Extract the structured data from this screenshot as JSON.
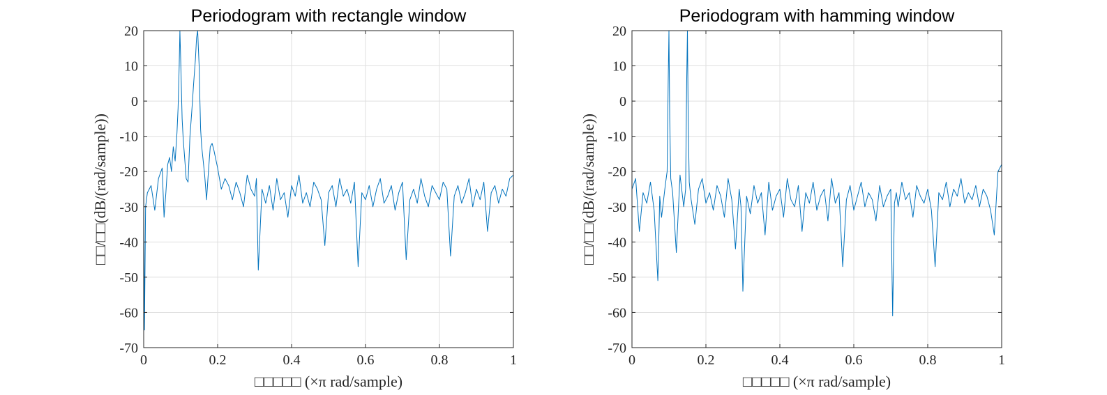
{
  "chart_data": [
    {
      "type": "line",
      "title": "Periodogram with rectangle window",
      "xlabel": "□□□□□  (×π rad/sample)",
      "ylabel": "□□/□□(dB/(rad/sample))",
      "xlim": [
        0,
        1
      ],
      "ylim": [
        -70,
        20
      ],
      "xticks": [
        "0",
        "0.2",
        "0.4",
        "0.6",
        "0.8",
        "1"
      ],
      "yticks": [
        "20",
        "10",
        "0",
        "-10",
        "-20",
        "-30",
        "-40",
        "-50",
        "-60",
        "-70"
      ],
      "grid": true,
      "color": "#0072BD",
      "series": [
        {
          "x": [
            0,
            0.002,
            0.005,
            0.01,
            0.02,
            0.03,
            0.04,
            0.05,
            0.055,
            0.06,
            0.065,
            0.07,
            0.075,
            0.08,
            0.085,
            0.09,
            0.093,
            0.096,
            0.098,
            0.1,
            0.102,
            0.104,
            0.107,
            0.11,
            0.115,
            0.12,
            0.125,
            0.13,
            0.135,
            0.14,
            0.143,
            0.146,
            0.148,
            0.15,
            0.152,
            0.154,
            0.157,
            0.16,
            0.165,
            0.17,
            0.175,
            0.18,
            0.185,
            0.19,
            0.2,
            0.21,
            0.22,
            0.23,
            0.24,
            0.25,
            0.26,
            0.27,
            0.28,
            0.29,
            0.3,
            0.305,
            0.31,
            0.32,
            0.33,
            0.34,
            0.35,
            0.36,
            0.37,
            0.38,
            0.39,
            0.4,
            0.41,
            0.42,
            0.43,
            0.44,
            0.45,
            0.46,
            0.47,
            0.48,
            0.49,
            0.5,
            0.51,
            0.52,
            0.53,
            0.54,
            0.55,
            0.56,
            0.57,
            0.58,
            0.59,
            0.6,
            0.61,
            0.62,
            0.63,
            0.64,
            0.65,
            0.66,
            0.67,
            0.68,
            0.69,
            0.7,
            0.71,
            0.72,
            0.73,
            0.74,
            0.75,
            0.76,
            0.77,
            0.78,
            0.79,
            0.8,
            0.81,
            0.82,
            0.83,
            0.84,
            0.85,
            0.86,
            0.87,
            0.88,
            0.89,
            0.9,
            0.91,
            0.92,
            0.93,
            0.94,
            0.95,
            0.96,
            0.97,
            0.98,
            0.99,
            1
          ],
          "y": [
            -22,
            -65,
            -30,
            -26,
            -24,
            -31,
            -22,
            -19,
            -33,
            -26,
            -18,
            -16,
            -20,
            -13,
            -17,
            -9,
            -2,
            10,
            20,
            12,
            3,
            -5,
            -11,
            -15,
            -22,
            -23,
            -10,
            -3,
            5,
            12,
            18,
            20,
            15,
            10,
            0,
            -8,
            -13,
            -16,
            -21,
            -28,
            -20,
            -13,
            -12,
            -14,
            -19,
            -25,
            -22,
            -24,
            -28,
            -23,
            -26,
            -30,
            -21,
            -25,
            -27,
            -22,
            -48,
            -25,
            -29,
            -24,
            -31,
            -22,
            -28,
            -26,
            -33,
            -24,
            -27,
            -21,
            -29,
            -26,
            -30,
            -23,
            -25,
            -28,
            -41,
            -26,
            -24,
            -30,
            -22,
            -27,
            -25,
            -29,
            -23,
            -47,
            -26,
            -28,
            -24,
            -30,
            -25,
            -22,
            -29,
            -27,
            -24,
            -31,
            -26,
            -23,
            -45,
            -28,
            -25,
            -29,
            -22,
            -27,
            -30,
            -24,
            -26,
            -28,
            -23,
            -25,
            -44,
            -27,
            -24,
            -29,
            -26,
            -22,
            -30,
            -25,
            -28,
            -23,
            -37,
            -26,
            -24,
            -29,
            -25,
            -27,
            -22,
            -21
          ]
        }
      ]
    },
    {
      "type": "line",
      "title": "Periodogram with hamming window",
      "xlabel": "□□□□□  (×π rad/sample)",
      "ylabel": "□□/□□(dB/(rad/sample))",
      "xlim": [
        0,
        1
      ],
      "ylim": [
        -70,
        20
      ],
      "xticks": [
        "0",
        "0.2",
        "0.4",
        "0.6",
        "0.8",
        "1"
      ],
      "yticks": [
        "20",
        "10",
        "0",
        "-10",
        "-20",
        "-30",
        "-40",
        "-50",
        "-60",
        "-70"
      ],
      "grid": true,
      "color": "#0072BD",
      "series": [
        {
          "x": [
            0,
            0.01,
            0.02,
            0.03,
            0.04,
            0.05,
            0.06,
            0.07,
            0.075,
            0.08,
            0.09,
            0.095,
            0.098,
            0.1,
            0.102,
            0.105,
            0.11,
            0.12,
            0.13,
            0.14,
            0.145,
            0.148,
            0.15,
            0.152,
            0.155,
            0.16,
            0.17,
            0.18,
            0.19,
            0.2,
            0.21,
            0.22,
            0.23,
            0.24,
            0.25,
            0.26,
            0.27,
            0.28,
            0.29,
            0.295,
            0.3,
            0.305,
            0.31,
            0.32,
            0.33,
            0.34,
            0.35,
            0.36,
            0.37,
            0.38,
            0.39,
            0.4,
            0.41,
            0.42,
            0.43,
            0.44,
            0.45,
            0.46,
            0.47,
            0.48,
            0.49,
            0.5,
            0.51,
            0.52,
            0.53,
            0.54,
            0.55,
            0.56,
            0.57,
            0.58,
            0.59,
            0.6,
            0.61,
            0.62,
            0.63,
            0.64,
            0.65,
            0.66,
            0.67,
            0.68,
            0.69,
            0.7,
            0.705,
            0.71,
            0.715,
            0.72,
            0.73,
            0.74,
            0.75,
            0.76,
            0.77,
            0.78,
            0.79,
            0.8,
            0.81,
            0.82,
            0.83,
            0.84,
            0.85,
            0.86,
            0.87,
            0.88,
            0.89,
            0.9,
            0.91,
            0.92,
            0.93,
            0.94,
            0.95,
            0.96,
            0.97,
            0.98,
            0.99,
            1
          ],
          "y": [
            -25,
            -22,
            -37,
            -26,
            -29,
            -23,
            -31,
            -51,
            -27,
            -33,
            -24,
            -20,
            5,
            20,
            -5,
            -22,
            -26,
            -43,
            -21,
            -30,
            -25,
            5,
            20,
            -5,
            -23,
            -28,
            -35,
            -25,
            -22,
            -29,
            -26,
            -31,
            -24,
            -27,
            -33,
            -22,
            -28,
            -42,
            -25,
            -30,
            -54,
            -40,
            -27,
            -32,
            -24,
            -29,
            -26,
            -38,
            -23,
            -31,
            -27,
            -25,
            -33,
            -22,
            -28,
            -30,
            -24,
            -37,
            -26,
            -29,
            -23,
            -31,
            -27,
            -25,
            -34,
            -22,
            -29,
            -26,
            -47,
            -28,
            -24,
            -31,
            -27,
            -23,
            -30,
            -26,
            -28,
            -34,
            -24,
            -30,
            -27,
            -25,
            -61,
            -29,
            -26,
            -30,
            -23,
            -28,
            -26,
            -33,
            -24,
            -27,
            -29,
            -25,
            -31,
            -47,
            -26,
            -28,
            -23,
            -30,
            -25,
            -27,
            -22,
            -29,
            -26,
            -28,
            -24,
            -30,
            -25,
            -27,
            -31,
            -38,
            -20,
            -18
          ]
        }
      ]
    }
  ]
}
